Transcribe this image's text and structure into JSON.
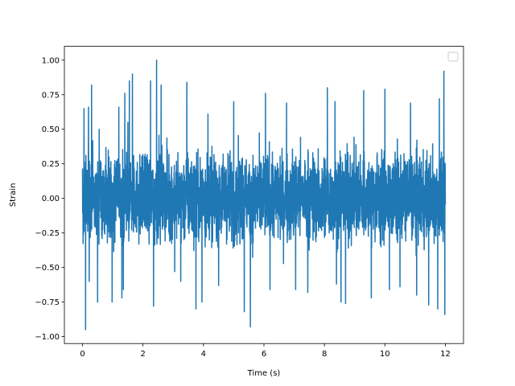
{
  "chart_data": {
    "type": "line",
    "title": "",
    "xlabel": "Time (s)",
    "ylabel": "Strain",
    "xlim": [
      -0.6,
      12.6
    ],
    "ylim": [
      -1.05,
      1.1
    ],
    "xticks": [
      0,
      2,
      4,
      6,
      8,
      10,
      12
    ],
    "xtick_labels": [
      "0",
      "2",
      "4",
      "6",
      "8",
      "10",
      "12"
    ],
    "yticks": [
      -1.0,
      -0.75,
      -0.5,
      -0.25,
      0.0,
      0.25,
      0.5,
      0.75,
      1.0
    ],
    "ytick_labels": [
      "−1.00",
      "−0.75",
      "−0.50",
      "−0.25",
      "0.00",
      "0.25",
      "0.50",
      "0.75",
      "1.00"
    ],
    "grid": false,
    "legend": {
      "placement": "upper right",
      "entries": []
    },
    "series": [
      {
        "color": "#1f77b4",
        "x_start": 0,
        "x_end": 12,
        "typical_range": [
          -0.45,
          0.55
        ],
        "peaks": [
          {
            "x": 0.05,
            "y": 0.65
          },
          {
            "x": 0.1,
            "y": -0.95
          },
          {
            "x": 0.2,
            "y": 0.66
          },
          {
            "x": 0.22,
            "y": -0.6
          },
          {
            "x": 0.3,
            "y": 0.82
          },
          {
            "x": 0.5,
            "y": -0.6
          },
          {
            "x": 0.55,
            "y": 0.5
          },
          {
            "x": 0.5,
            "y": -0.75
          },
          {
            "x": 0.98,
            "y": -0.75
          },
          {
            "x": 1.2,
            "y": 0.66
          },
          {
            "x": 1.35,
            "y": -0.66
          },
          {
            "x": 1.4,
            "y": 0.76
          },
          {
            "x": 1.5,
            "y": 0.55
          },
          {
            "x": 1.3,
            "y": -0.72
          },
          {
            "x": 1.55,
            "y": 0.85
          },
          {
            "x": 1.65,
            "y": 0.9
          },
          {
            "x": 2.25,
            "y": 0.85
          },
          {
            "x": 2.35,
            "y": -0.78
          },
          {
            "x": 2.45,
            "y": 1.0
          },
          {
            "x": 2.6,
            "y": 0.82
          },
          {
            "x": 3.05,
            "y": -0.53
          },
          {
            "x": 3.25,
            "y": -0.6
          },
          {
            "x": 3.45,
            "y": 0.84
          },
          {
            "x": 3.75,
            "y": -0.8
          },
          {
            "x": 3.95,
            "y": -0.75
          },
          {
            "x": 4.15,
            "y": 0.61
          },
          {
            "x": 4.5,
            "y": -0.63
          },
          {
            "x": 5.0,
            "y": 0.7
          },
          {
            "x": 5.35,
            "y": -0.82
          },
          {
            "x": 5.55,
            "y": -0.93
          },
          {
            "x": 6.05,
            "y": 0.76
          },
          {
            "x": 6.2,
            "y": -0.66
          },
          {
            "x": 6.75,
            "y": 0.69
          },
          {
            "x": 7.05,
            "y": -0.66
          },
          {
            "x": 7.45,
            "y": -0.68
          },
          {
            "x": 8.1,
            "y": 0.8
          },
          {
            "x": 8.4,
            "y": -0.62
          },
          {
            "x": 8.35,
            "y": 0.7
          },
          {
            "x": 8.55,
            "y": -0.75
          },
          {
            "x": 8.7,
            "y": -0.76
          },
          {
            "x": 9.3,
            "y": 0.78
          },
          {
            "x": 9.55,
            "y": -0.72
          },
          {
            "x": 10.0,
            "y": 0.79
          },
          {
            "x": 10.15,
            "y": -0.66
          },
          {
            "x": 10.5,
            "y": -0.64
          },
          {
            "x": 10.85,
            "y": 0.69
          },
          {
            "x": 11.05,
            "y": -0.7
          },
          {
            "x": 11.45,
            "y": -0.77
          },
          {
            "x": 11.75,
            "y": -0.8
          },
          {
            "x": 11.8,
            "y": 0.72
          },
          {
            "x": 11.95,
            "y": 0.92
          },
          {
            "x": 11.98,
            "y": -0.84
          }
        ]
      }
    ]
  }
}
